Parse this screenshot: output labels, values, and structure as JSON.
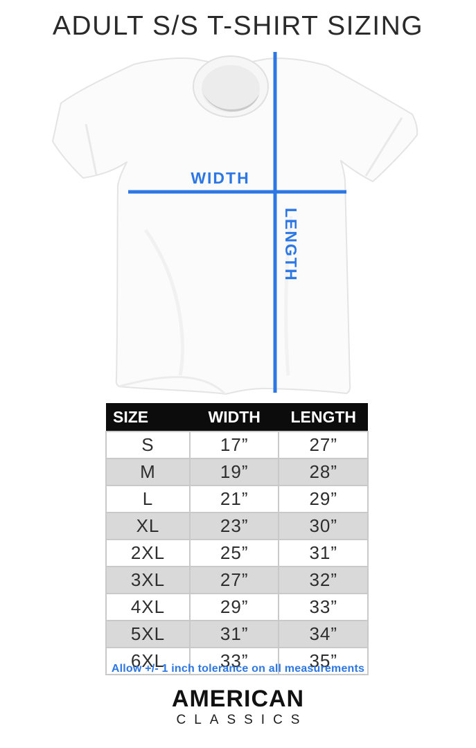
{
  "page": {
    "title": "ADULT S/S T-SHIRT SIZING",
    "background": "#ffffff"
  },
  "diagram": {
    "width_label": "WIDTH",
    "length_label": "LENGTH",
    "line_color": "#2c77e4"
  },
  "table": {
    "columns": [
      "SIZE",
      "WIDTH",
      "LENGTH"
    ],
    "rows": [
      [
        "S",
        "17”",
        "27”"
      ],
      [
        "M",
        "19”",
        "28”"
      ],
      [
        "L",
        "21”",
        "29”"
      ],
      [
        "XL",
        "23”",
        "30”"
      ],
      [
        "2XL",
        "25”",
        "31”"
      ],
      [
        "3XL",
        "27”",
        "32”"
      ],
      [
        "4XL",
        "29”",
        "33”"
      ],
      [
        "5XL",
        "31”",
        "34”"
      ],
      [
        "6XL",
        "33”",
        "35”"
      ]
    ],
    "header_bg": "#0c0c0c",
    "header_text_color": "#ffffff",
    "alt_row_bg": "#d9d9d9",
    "border_color": "#c9c9c9"
  },
  "note": {
    "text": "Allow +/- 1 inch tolerance on all measurements",
    "color": "#2c77e4"
  },
  "logo": {
    "line1": "AMERICAN",
    "line2": "CLASSICS"
  },
  "chart_data": {
    "type": "table",
    "title": "ADULT S/S T-SHIRT SIZING",
    "columns": [
      "SIZE",
      "WIDTH",
      "LENGTH"
    ],
    "sizes": [
      "S",
      "M",
      "L",
      "XL",
      "2XL",
      "3XL",
      "4XL",
      "5XL",
      "6XL"
    ],
    "width_inches": [
      17,
      19,
      21,
      23,
      25,
      27,
      29,
      31,
      33
    ],
    "length_inches": [
      27,
      28,
      29,
      30,
      31,
      32,
      33,
      34,
      35
    ],
    "note": "Allow +/- 1 inch tolerance on all measurements",
    "layout_hints": {
      "header_style": "black bar, white bold text",
      "alternating_rows": true,
      "units": "inches"
    }
  }
}
